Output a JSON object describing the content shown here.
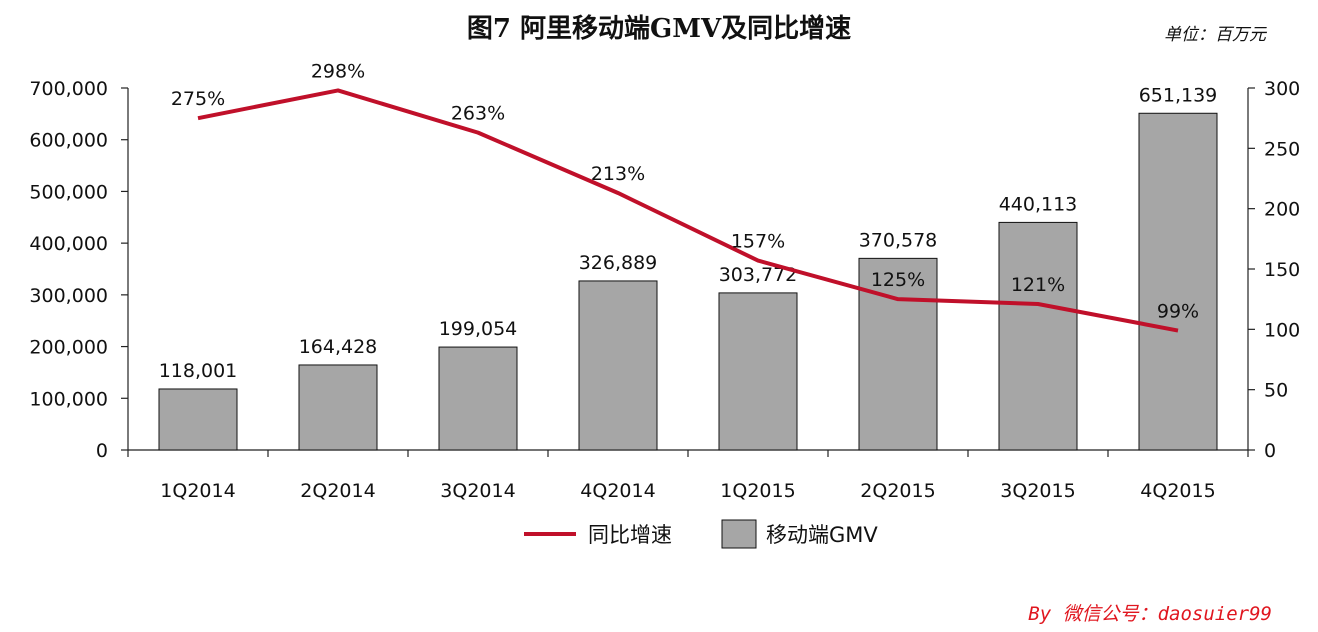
{
  "title": "图7 阿里移动端GMV及同比增速",
  "unit": "单位：百万元",
  "watermark": "By 微信公号：daosuier99",
  "chart_data": {
    "type": "bar",
    "categories": [
      "1Q2014",
      "2Q2014",
      "3Q2014",
      "4Q2014",
      "1Q2015",
      "2Q2015",
      "3Q2015",
      "4Q2015"
    ],
    "series": [
      {
        "name": "移动端GMV",
        "type": "bar",
        "axis": "left",
        "values": [
          118001,
          164428,
          199054,
          326889,
          303772,
          370578,
          440113,
          651139
        ],
        "labels": [
          "118,001",
          "164,428",
          "199,054",
          "326,889",
          "303,772",
          "370,578",
          "440,113",
          "651,139"
        ],
        "color": "#a6a6a6"
      },
      {
        "name": "同比增速",
        "type": "line",
        "axis": "right",
        "values": [
          275,
          298,
          263,
          213,
          157,
          125,
          121,
          99
        ],
        "labels": [
          "275%",
          "298%",
          "263%",
          "213%",
          "157%",
          "125%",
          "121%",
          "99%"
        ],
        "color": "#c0102a"
      }
    ],
    "y_left": {
      "ylim": [
        0,
        700000
      ],
      "ticks": [
        "0",
        "100,000",
        "200,000",
        "300,000",
        "400,000",
        "500,000",
        "600,000",
        "700,000"
      ]
    },
    "y_right": {
      "ylim": [
        0,
        300
      ],
      "ticks": [
        "0",
        "50",
        "100",
        "150",
        "200",
        "250",
        "300"
      ]
    },
    "legend": {
      "position": "bottom",
      "items": [
        "同比增速",
        "移动端GMV"
      ]
    },
    "grid": false
  }
}
